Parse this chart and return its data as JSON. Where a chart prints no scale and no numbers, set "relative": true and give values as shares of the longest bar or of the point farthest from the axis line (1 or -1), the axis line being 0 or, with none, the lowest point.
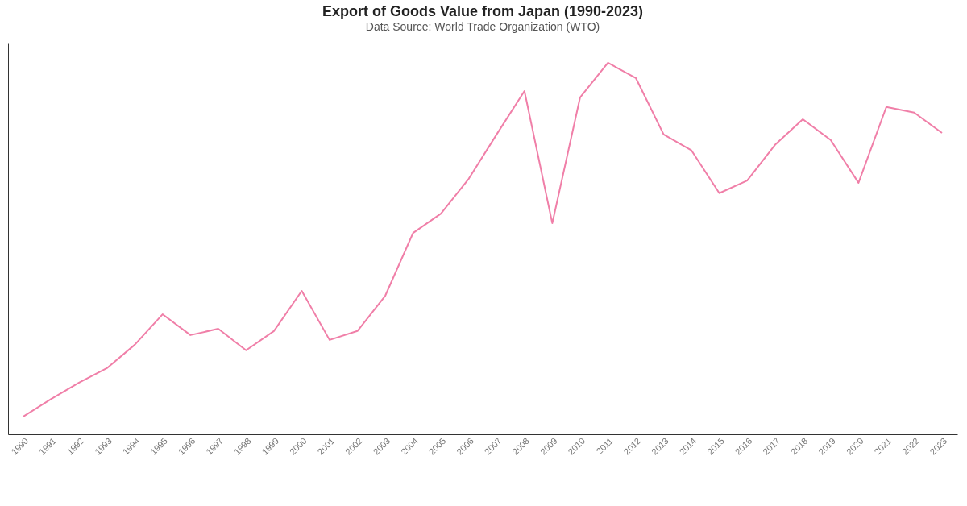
{
  "chart_data": {
    "type": "line",
    "title": "Export of Goods Value from Japan (1990-2023)",
    "subtitle": "Data Source: World Trade Organization (WTO)",
    "relative": true,
    "grid": false,
    "marker": "none",
    "categories": [
      "1990",
      "1991",
      "1992",
      "1993",
      "1994",
      "1995",
      "1996",
      "1997",
      "1998",
      "1999",
      "2000",
      "2001",
      "2002",
      "2003",
      "2004",
      "2005",
      "2006",
      "2007",
      "2008",
      "2009",
      "2010",
      "2011",
      "2012",
      "2013",
      "2014",
      "2015",
      "2016",
      "2017",
      "2018",
      "2019",
      "2020",
      "2021",
      "2022",
      "2023"
    ],
    "series": [
      {
        "color": "#f07fa8",
        "values": [
          0.048,
          0.095,
          0.139,
          0.178,
          0.241,
          0.323,
          0.267,
          0.284,
          0.226,
          0.278,
          0.386,
          0.254,
          0.278,
          0.373,
          0.542,
          0.594,
          0.688,
          0.807,
          0.924,
          0.568,
          0.907,
          1,
          0.959,
          0.807,
          0.764,
          0.649,
          0.683,
          0.779,
          0.848,
          0.792,
          0.677,
          0.881,
          0.866,
          0.811
        ]
      }
    ]
  }
}
